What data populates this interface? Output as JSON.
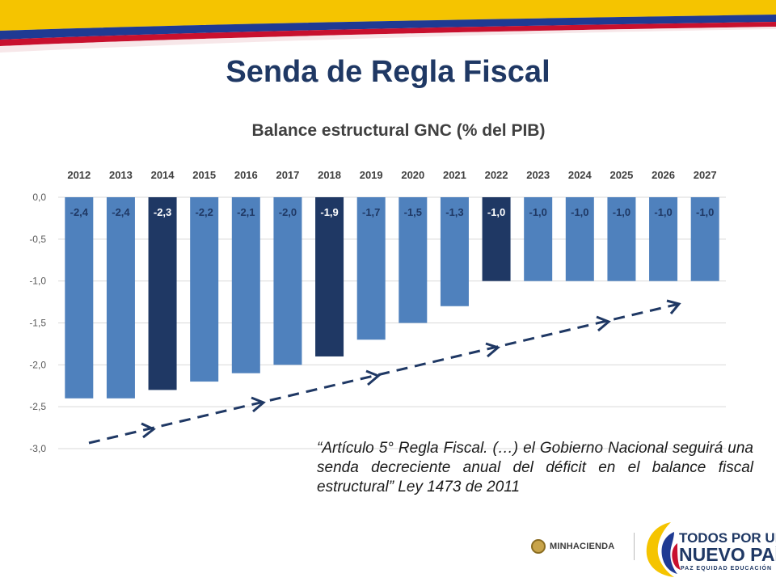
{
  "slide": {
    "title": "Senda de Regla Fiscal",
    "quote": "“Artículo 5° Regla Fiscal. (…) el Gobierno Nacional seguirá una senda decreciente anual del déficit en el balance fiscal estructural” Ley 1473 de 2011"
  },
  "logos": {
    "minhacienda": "MINHACIENDA",
    "brand_line1": "TODOS POR UN",
    "brand_line2": "NUEVO PAÍS",
    "brand_line3": "PAZ  EQUIDAD  EDUCACIÓN"
  },
  "colors": {
    "bar_default": "#4f81bd",
    "bar_highlight": "#1f3864",
    "title": "#1f3864",
    "band_yellow": "#f5c400",
    "band_blue": "#1f3a93",
    "band_red": "#c8102e"
  },
  "chart_data": {
    "type": "bar",
    "title": "Balance estructural GNC (% del PIB)",
    "xlabel": "",
    "ylabel": "",
    "categories": [
      "2012",
      "2013",
      "2014",
      "2015",
      "2016",
      "2017",
      "2018",
      "2019",
      "2020",
      "2021",
      "2022",
      "2023",
      "2024",
      "2025",
      "2026",
      "2027"
    ],
    "values": [
      -2.4,
      -2.4,
      -2.3,
      -2.2,
      -2.1,
      -2.0,
      -1.9,
      -1.7,
      -1.5,
      -1.3,
      -1.0,
      -1.0,
      -1.0,
      -1.0,
      -1.0,
      -1.0
    ],
    "data_labels": [
      "-2,4",
      "-2,4",
      "-2,3",
      "-2,2",
      "-2,1",
      "-2,0",
      "-1,9",
      "-1,7",
      "-1,5",
      "-1,3",
      "-1,0",
      "-1,0",
      "-1,0",
      "-1,0",
      "-1,0",
      "-1,0"
    ],
    "highlighted_categories": [
      "2014",
      "2018",
      "2022"
    ],
    "ylim": [
      -3.0,
      0.0
    ],
    "yticks": [
      0.0,
      -0.5,
      -1.0,
      -1.5,
      -2.0,
      -2.5,
      -3.0
    ],
    "ytick_labels": [
      "0,0",
      "-0,5",
      "-1,0",
      "-1,5",
      "-2,0",
      "-2,5",
      "-3,0"
    ],
    "grid": true,
    "category_axis_position": "top",
    "trend_arrow": "dashed"
  }
}
